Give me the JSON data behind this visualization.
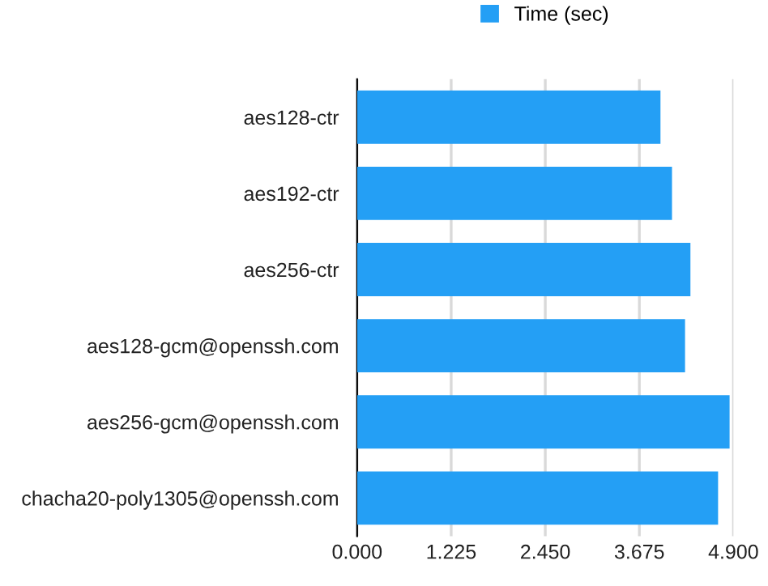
{
  "chart_data": {
    "type": "bar",
    "orientation": "horizontal",
    "categories": [
      "aes128-ctr",
      "aes192-ctr",
      "aes256-ctr",
      "aes128-gcm@openssh.com",
      "aes256-gcm@openssh.com",
      "chacha20-poly1305@openssh.com"
    ],
    "series": [
      {
        "name": "Time (sec)",
        "color": "#249ff5",
        "values": [
          3.95,
          4.1,
          4.34,
          4.27,
          4.85,
          4.7
        ]
      }
    ],
    "xlim": [
      0,
      4.9
    ],
    "xticks": [
      {
        "value": 0,
        "label": "0.000"
      },
      {
        "value": 1.225,
        "label": "1.225"
      },
      {
        "value": 2.45,
        "label": "2.450"
      },
      {
        "value": 3.675,
        "label": "3.675"
      },
      {
        "value": 4.9,
        "label": "4.900"
      }
    ],
    "grid": "x",
    "legend": "top"
  }
}
